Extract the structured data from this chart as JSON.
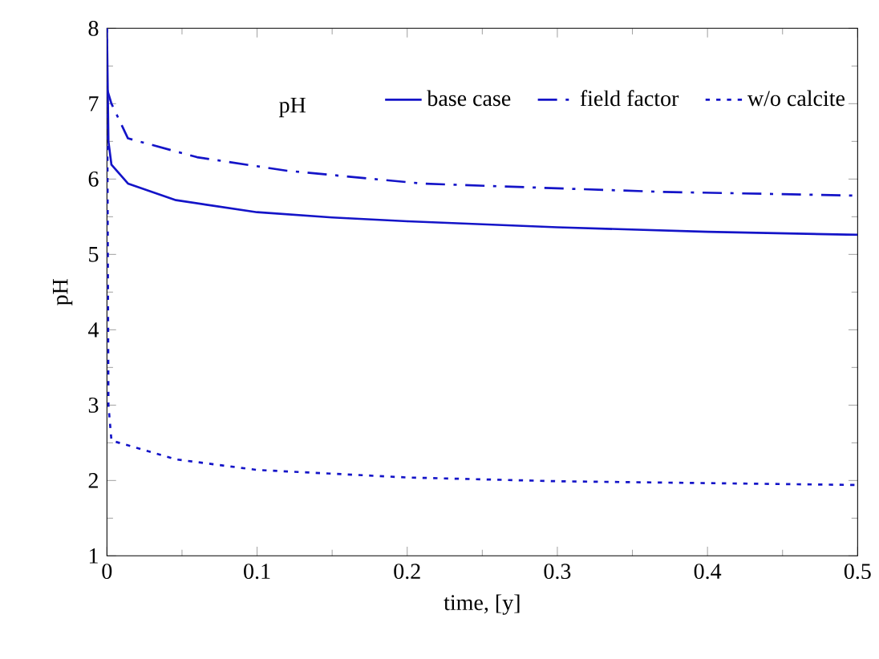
{
  "chart_data": {
    "type": "line",
    "xlabel": "time, [y]",
    "ylabel": "pH",
    "legend_title": "pH",
    "legend": "top",
    "xlim": [
      0,
      0.5
    ],
    "ylim": [
      1,
      8
    ],
    "xticks": [
      0,
      0.1,
      0.2,
      0.3,
      0.4,
      0.5
    ],
    "yticks": [
      1,
      2,
      3,
      4,
      5,
      6,
      7,
      8
    ],
    "series": [
      {
        "name": "base case",
        "color": "#1414c8",
        "line_style": "solid",
        "x": [
          0,
          0.001,
          0.003,
          0.014,
          0.046,
          0.1,
          0.15,
          0.2,
          0.3,
          0.4,
          0.5
        ],
        "values": [
          8,
          6.5,
          6.19,
          5.94,
          5.72,
          5.56,
          5.49,
          5.44,
          5.36,
          5.3,
          5.26
        ]
      },
      {
        "name": "field factor",
        "color": "#1414c8",
        "line_style": "dashdot",
        "x": [
          0,
          0.003,
          0.014,
          0.06,
          0.12,
          0.21,
          0.31,
          0.37,
          0.5
        ],
        "values": [
          7.2,
          7.0,
          6.54,
          6.29,
          6.11,
          5.94,
          5.87,
          5.83,
          5.78
        ]
      },
      {
        "name": "w/o calcite",
        "color": "#1414c8",
        "line_style": "dotted",
        "x": [
          0,
          0.001,
          0.003,
          0.046,
          0.1,
          0.2,
          0.3,
          0.5
        ],
        "values": [
          8,
          3.0,
          2.53,
          2.28,
          2.14,
          2.04,
          1.99,
          1.94
        ]
      }
    ]
  }
}
